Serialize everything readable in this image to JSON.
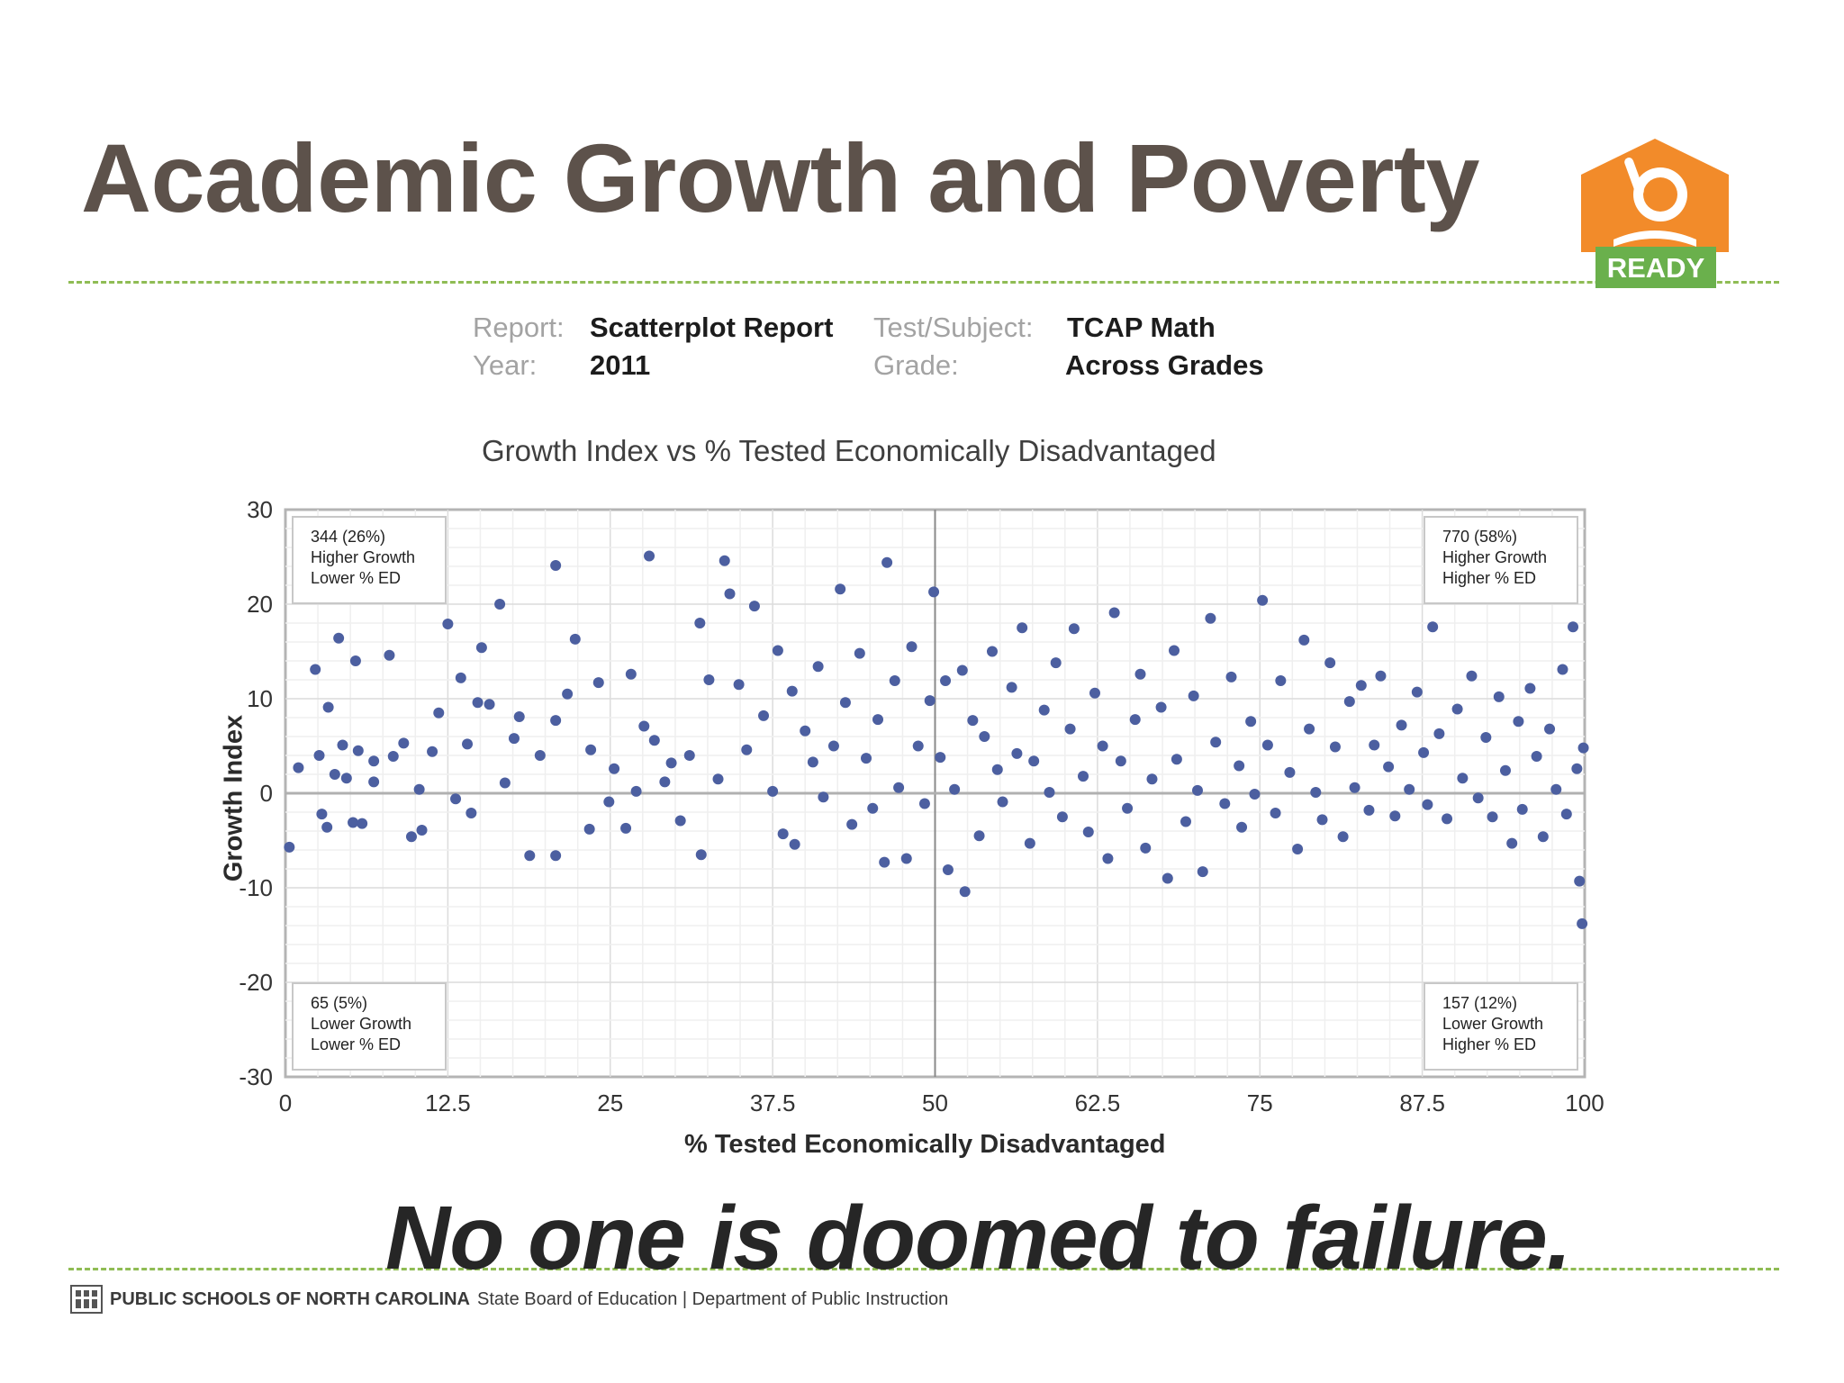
{
  "slide": {
    "title": "Academic Growth and Poverty",
    "tagline": "No one is doomed to failure.",
    "logo_text": "READY",
    "footer_bold": "PUBLIC SCHOOLS OF NORTH CAROLINA",
    "footer_regular": "State Board of Education | Department of Public Instruction"
  },
  "report_meta": {
    "report_label": "Report:",
    "report_value": "Scatterplot Report",
    "year_label": "Year:",
    "year_value": "2011",
    "subject_label": "Test/Subject:",
    "subject_value": "TCAP Math",
    "grade_label": "Grade:",
    "grade_value": "Across Grades"
  },
  "colors": {
    "title": "#5d524b",
    "rule": "#8fbc54",
    "points": "#4c5fa0",
    "logo_orange": "#f28b2a",
    "logo_green": "#6ab04c"
  },
  "chart_data": {
    "type": "scatter",
    "title": "Growth Index vs % Tested Economically Disadvantaged",
    "xlabel": "% Tested Economically Disadvantaged",
    "ylabel": "Growth Index",
    "xlim": [
      0,
      100
    ],
    "ylim": [
      -30,
      30
    ],
    "x_ticks": [
      "0",
      "12.5",
      "25",
      "37.5",
      "50",
      "62.5",
      "75",
      "87.5",
      "100"
    ],
    "y_ticks": [
      "30",
      "20",
      "10",
      "0",
      "-10",
      "-20",
      "-30"
    ],
    "reference_lines": {
      "x": 50,
      "y": 0
    },
    "grid": true,
    "quadrant_labels": [
      {
        "position": "top-left",
        "lines": [
          "344 (26%)",
          "Higher Growth",
          "Lower % ED"
        ]
      },
      {
        "position": "top-right",
        "lines": [
          "770 (58%)",
          "Higher Growth",
          "Higher % ED"
        ]
      },
      {
        "position": "bottom-left",
        "lines": [
          "65 (5%)",
          "Lower Growth",
          "Lower % ED"
        ]
      },
      {
        "position": "bottom-right",
        "lines": [
          "157 (12%)",
          "Lower Growth",
          "Higher % ED"
        ]
      }
    ],
    "series": [
      {
        "points": [
          [
            0.3,
            -5.7
          ],
          [
            1,
            2.7
          ],
          [
            2.3,
            13.1
          ],
          [
            2.6,
            4
          ],
          [
            2.8,
            -2.2
          ],
          [
            3.2,
            -3.6
          ],
          [
            3.3,
            9.1
          ],
          [
            3.8,
            2
          ],
          [
            4.1,
            16.4
          ],
          [
            4.4,
            5.1
          ],
          [
            4.7,
            1.6
          ],
          [
            5.2,
            -3.1
          ],
          [
            5.4,
            14
          ],
          [
            5.6,
            4.5
          ],
          [
            5.9,
            -3.2
          ],
          [
            6.8,
            1.2
          ],
          [
            6.8,
            3.4
          ],
          [
            8,
            14.6
          ],
          [
            8.3,
            3.9
          ],
          [
            9.1,
            5.3
          ],
          [
            9.7,
            -4.6
          ],
          [
            10.3,
            0.4
          ],
          [
            10.5,
            -3.9
          ],
          [
            11.3,
            4.4
          ],
          [
            11.8,
            8.5
          ],
          [
            12.5,
            17.9
          ],
          [
            13.1,
            -0.6
          ],
          [
            13.5,
            12.2
          ],
          [
            14,
            5.2
          ],
          [
            14.3,
            -2.1
          ],
          [
            14.8,
            9.6
          ],
          [
            15.1,
            15.4
          ],
          [
            15.7,
            9.4
          ],
          [
            16.5,
            20
          ],
          [
            16.9,
            1.1
          ],
          [
            17.6,
            5.8
          ],
          [
            18,
            8.1
          ],
          [
            18.8,
            -6.6
          ],
          [
            19.6,
            4
          ],
          [
            20.8,
            24.1
          ],
          [
            20.8,
            -6.6
          ],
          [
            20.8,
            7.7
          ],
          [
            21.7,
            10.5
          ],
          [
            22.3,
            16.3
          ],
          [
            23.4,
            -3.8
          ],
          [
            23.5,
            4.6
          ],
          [
            24.1,
            11.7
          ],
          [
            24.9,
            -0.9
          ],
          [
            25.3,
            2.6
          ],
          [
            26.2,
            -3.7
          ],
          [
            26.6,
            12.6
          ],
          [
            27,
            0.2
          ],
          [
            27.6,
            7.1
          ],
          [
            28,
            25.1
          ],
          [
            28.4,
            5.6
          ],
          [
            29.2,
            1.2
          ],
          [
            29.7,
            3.2
          ],
          [
            30.4,
            -2.9
          ],
          [
            31.1,
            4
          ],
          [
            31.9,
            18
          ],
          [
            32,
            -6.5
          ],
          [
            32.6,
            12
          ],
          [
            33.3,
            1.5
          ],
          [
            33.8,
            24.6
          ],
          [
            34.2,
            21.1
          ],
          [
            34.9,
            11.5
          ],
          [
            35.5,
            4.6
          ],
          [
            36.1,
            19.8
          ],
          [
            36.8,
            8.2
          ],
          [
            37.5,
            0.2
          ],
          [
            37.9,
            15.1
          ],
          [
            38.3,
            -4.3
          ],
          [
            39,
            10.8
          ],
          [
            39.2,
            -5.4
          ],
          [
            40,
            6.6
          ],
          [
            40.6,
            3.3
          ],
          [
            41,
            13.4
          ],
          [
            41.4,
            -0.4
          ],
          [
            42.2,
            5
          ],
          [
            42.7,
            21.6
          ],
          [
            43.1,
            9.6
          ],
          [
            43.6,
            -3.3
          ],
          [
            44.2,
            14.8
          ],
          [
            44.7,
            3.7
          ],
          [
            45.2,
            -1.6
          ],
          [
            45.6,
            7.8
          ],
          [
            46.1,
            -7.3
          ],
          [
            46.3,
            24.4
          ],
          [
            46.9,
            11.9
          ],
          [
            47.2,
            0.6
          ],
          [
            47.8,
            -6.9
          ],
          [
            48.2,
            15.5
          ],
          [
            48.7,
            5
          ],
          [
            49.2,
            -1.1
          ],
          [
            49.6,
            9.8
          ],
          [
            49.9,
            21.3
          ],
          [
            50.4,
            3.8
          ],
          [
            50.8,
            11.9
          ],
          [
            51,
            -8.1
          ],
          [
            51.5,
            0.4
          ],
          [
            52.1,
            13
          ],
          [
            52.3,
            -10.4
          ],
          [
            52.9,
            7.7
          ],
          [
            53.4,
            -4.5
          ],
          [
            53.8,
            6
          ],
          [
            54.4,
            15
          ],
          [
            54.8,
            2.5
          ],
          [
            55.2,
            -0.9
          ],
          [
            55.9,
            11.2
          ],
          [
            56.3,
            4.2
          ],
          [
            56.7,
            17.5
          ],
          [
            57.3,
            -5.3
          ],
          [
            57.6,
            3.4
          ],
          [
            58.4,
            8.8
          ],
          [
            58.8,
            0.1
          ],
          [
            59.3,
            13.8
          ],
          [
            59.8,
            -2.5
          ],
          [
            60.4,
            6.8
          ],
          [
            60.7,
            17.4
          ],
          [
            61.4,
            1.8
          ],
          [
            61.8,
            -4.1
          ],
          [
            62.3,
            10.6
          ],
          [
            62.9,
            5
          ],
          [
            63.3,
            -6.9
          ],
          [
            63.8,
            19.1
          ],
          [
            64.3,
            3.4
          ],
          [
            64.8,
            -1.6
          ],
          [
            65.4,
            7.8
          ],
          [
            65.8,
            12.6
          ],
          [
            66.2,
            -5.8
          ],
          [
            66.7,
            1.5
          ],
          [
            67.4,
            9.1
          ],
          [
            67.9,
            -9
          ],
          [
            68.4,
            15.1
          ],
          [
            68.6,
            3.6
          ],
          [
            69.3,
            -3
          ],
          [
            69.9,
            10.3
          ],
          [
            70.2,
            0.3
          ],
          [
            70.6,
            -8.3
          ],
          [
            71.2,
            18.5
          ],
          [
            71.6,
            5.4
          ],
          [
            72.3,
            -1.1
          ],
          [
            72.8,
            12.3
          ],
          [
            73.4,
            2.9
          ],
          [
            73.6,
            -3.6
          ],
          [
            74.3,
            7.6
          ],
          [
            74.6,
            -0.1
          ],
          [
            75.2,
            20.4
          ],
          [
            75.6,
            5.1
          ],
          [
            76.2,
            -2.1
          ],
          [
            76.6,
            11.9
          ],
          [
            77.3,
            2.2
          ],
          [
            77.9,
            -5.9
          ],
          [
            78.4,
            16.2
          ],
          [
            78.8,
            6.8
          ],
          [
            79.3,
            0.1
          ],
          [
            79.8,
            -2.8
          ],
          [
            80.4,
            13.8
          ],
          [
            80.8,
            4.9
          ],
          [
            81.4,
            -4.6
          ],
          [
            81.9,
            9.7
          ],
          [
            82.3,
            0.6
          ],
          [
            82.8,
            11.4
          ],
          [
            83.4,
            -1.8
          ],
          [
            83.8,
            5.1
          ],
          [
            84.3,
            12.4
          ],
          [
            84.9,
            2.8
          ],
          [
            85.4,
            -2.4
          ],
          [
            85.9,
            7.2
          ],
          [
            86.5,
            0.4
          ],
          [
            87.1,
            10.7
          ],
          [
            87.6,
            4.3
          ],
          [
            87.9,
            -1.2
          ],
          [
            88.3,
            17.6
          ],
          [
            88.8,
            6.3
          ],
          [
            89.4,
            -2.7
          ],
          [
            90.2,
            8.9
          ],
          [
            90.6,
            1.6
          ],
          [
            91.3,
            12.4
          ],
          [
            91.8,
            -0.5
          ],
          [
            92.4,
            5.9
          ],
          [
            92.9,
            -2.5
          ],
          [
            93.4,
            10.2
          ],
          [
            93.9,
            2.4
          ],
          [
            94.4,
            -5.3
          ],
          [
            94.9,
            7.6
          ],
          [
            95.2,
            -1.7
          ],
          [
            95.8,
            11.1
          ],
          [
            96.3,
            3.9
          ],
          [
            96.8,
            -4.6
          ],
          [
            97.3,
            6.8
          ],
          [
            97.8,
            0.4
          ],
          [
            98.3,
            13.1
          ],
          [
            98.6,
            -2.2
          ],
          [
            99.1,
            17.6
          ],
          [
            99.4,
            2.6
          ],
          [
            99.6,
            -9.3
          ],
          [
            99.8,
            -13.8
          ],
          [
            99.9,
            4.8
          ]
        ]
      }
    ]
  }
}
